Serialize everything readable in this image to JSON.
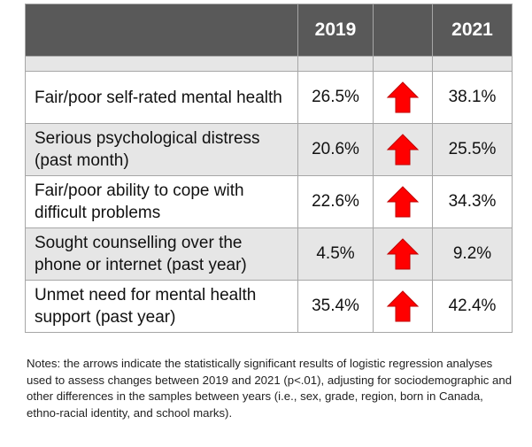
{
  "header": {
    "col_label": "",
    "year_1": "2019",
    "col_arrow": "",
    "year_2": "2021"
  },
  "colors": {
    "header_bg": "#595959",
    "shade_bg": "#e6e6e6",
    "arrow": "#ff0000"
  },
  "rows": [
    {
      "label": "Fair/poor self-rated mental health",
      "v2019": "26.5%",
      "arrow": "up-arrow-icon",
      "v2021": "38.1%"
    },
    {
      "label": "Serious psychological distress (past month)",
      "v2019": "20.6%",
      "arrow": "up-arrow-icon",
      "v2021": "25.5%"
    },
    {
      "label": "Fair/poor ability to cope with difficult problems",
      "v2019": "22.6%",
      "arrow": "up-arrow-icon",
      "v2021": "34.3%"
    },
    {
      "label": "Sought counselling over the phone or internet (past year)",
      "v2019": "4.5%",
      "arrow": "up-arrow-icon",
      "v2021": "9.2%"
    },
    {
      "label": "Unmet need for mental health support (past year)",
      "v2019": "35.4%",
      "arrow": "up-arrow-icon",
      "v2021": "42.4%"
    }
  ],
  "notes": "Notes: the arrows indicate the statistically significant results of logistic regression analyses used to assess changes between 2019 and 2021 (p<.01), adjusting for sociodemographic and other differences in the samples between years (i.e., sex, grade, region, born in Canada, ethno-racial identity, and school marks)."
}
